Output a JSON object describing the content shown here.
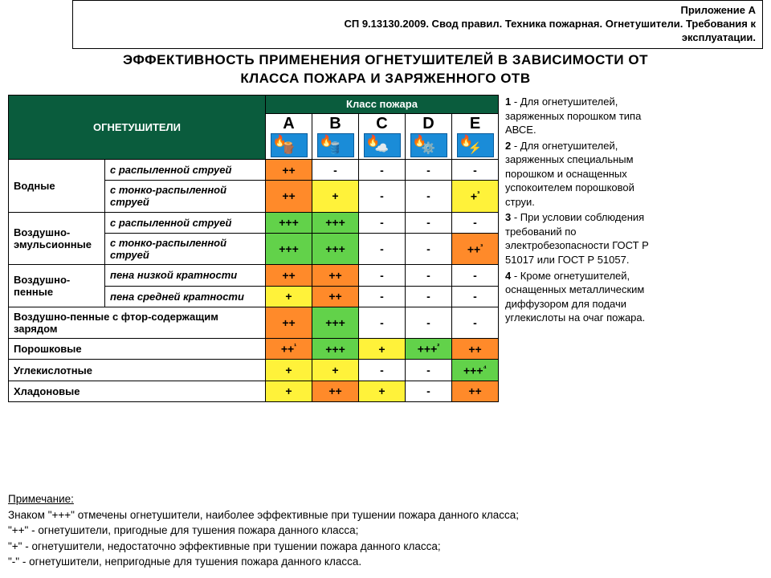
{
  "appendix": {
    "line1": "Приложение А",
    "line2": "СП 9.13130.2009. Свод правил. Техника пожарная. Огнетушители. Требования к",
    "line3": "эксплуатации."
  },
  "title": {
    "line1": "ЭФФЕКТИВНОСТЬ ПРИМЕНЕНИЯ ОГНЕТУШИТЕЛЕЙ В ЗАВИСИМОСТИ ОТ",
    "line2": "КЛАССА ПОЖАРА И ЗАРЯЖЕННОГО ОТВ"
  },
  "colors": {
    "triple": "#62d24a",
    "double": "#ff8a2a",
    "single": "#fff23a",
    "dash": "#ffffff",
    "header_dark": "#0a5c3d"
  },
  "fire_classes": [
    {
      "letter": "A",
      "icon": "🪵"
    },
    {
      "letter": "B",
      "icon": "🛢️"
    },
    {
      "letter": "C",
      "icon": "☁️"
    },
    {
      "letter": "D",
      "icon": "⚙️"
    },
    {
      "letter": "E",
      "icon": "⚡"
    }
  ],
  "header_classes_label": "Класс пожара",
  "header_ext_label": "ОГНЕТУШИТЕЛИ",
  "rows": [
    {
      "group": "Водные",
      "group_rowspan": 2,
      "sub": "с распыленной струей",
      "vals": [
        "++",
        "-",
        "-",
        "-",
        "-"
      ]
    },
    {
      "sub": "с тонко-распыленной струей",
      "vals": [
        "++",
        "+",
        "-",
        "-",
        "+³"
      ]
    },
    {
      "group": "Воздушно-эмульсионные",
      "group_rowspan": 2,
      "sub": "с распыленной струей",
      "vals": [
        "+++",
        "+++",
        "-",
        "-",
        "-"
      ]
    },
    {
      "sub": "с тонко-распыленной струей",
      "vals": [
        "+++",
        "+++",
        "-",
        "-",
        "++³"
      ]
    },
    {
      "group": "Воздушно-пенные",
      "group_rowspan": 2,
      "sub": "пена низкой кратности",
      "vals": [
        "++",
        "++",
        "-",
        "-",
        "-"
      ]
    },
    {
      "sub": "пена средней кратности",
      "vals": [
        "+",
        "++",
        "-",
        "-",
        "-"
      ]
    },
    {
      "full": "Воздушно-пенные  с  фтор-содержащим зарядом",
      "vals": [
        "++",
        "+++",
        "-",
        "-",
        "-"
      ]
    },
    {
      "full": "Порошковые",
      "vals": [
        "++¹",
        "+++",
        "+",
        "+++²",
        "++"
      ]
    },
    {
      "full": "Углекислотные",
      "vals": [
        "+",
        "+",
        "-",
        "-",
        "+++⁴"
      ]
    },
    {
      "full": "Хладоновые",
      "vals": [
        "+",
        "++",
        "+",
        "-",
        "++"
      ]
    }
  ],
  "sidenotes": [
    {
      "num": "1",
      "text": "- Для огнетушителей, заряженных порошком типа АВСЕ."
    },
    {
      "num": "2",
      "text": "- Для огнетушителей, заряженных специальным порошком и оснащенных успокоителем порошковой струи."
    },
    {
      "num": "3",
      "text": "- При условии соблюдения требований по электробезопасности ГОСТ Р 51017 или ГОСТ Р 51057."
    },
    {
      "num": "4",
      "text": "- Кроме огнетушителей, оснащенных металлическим диффузором для подачи углекислоты на очаг пожара."
    }
  ],
  "footnotes": {
    "title": "Примечание:",
    "lines": [
      "Знаком \"+++\" отмечены огнетушители, наиболее эффективные при тушении пожара данного класса;",
      "\"++\" - огнетушители, пригодные для тушения пожара данного класса;",
      "\"+\" - огнетушители, недостаточно эффективные при тушении пожара данного класса;",
      "\"-\" - огнетушители, непригодные для тушения пожара данного класса."
    ]
  },
  "col_widths": {
    "group": 120,
    "sub": 200,
    "class": 58
  }
}
